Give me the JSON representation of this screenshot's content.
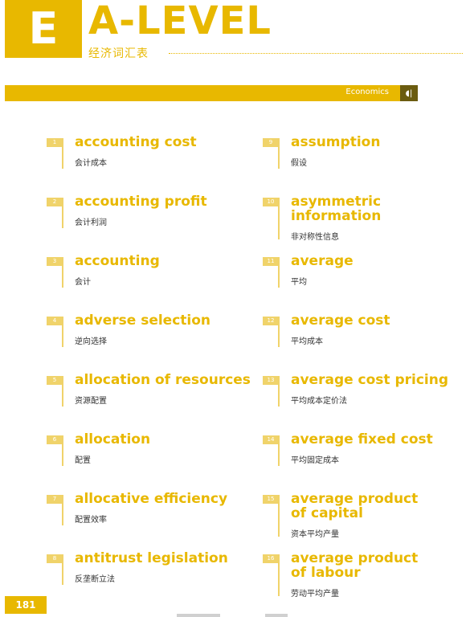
{
  "header": {
    "badge_letter": "E",
    "title": "A-LEVEL",
    "subtitle": "经济词汇表"
  },
  "band": {
    "label": "Economics",
    "icon": "speaker-icon"
  },
  "page_number": "181",
  "colors": {
    "accent": "#e8b800",
    "accent_light": "#f0d36a",
    "band_icon_bg": "#6b5c10"
  },
  "entries_left": [
    {
      "num": "1",
      "term": "accounting cost",
      "zh": "会计成本"
    },
    {
      "num": "2",
      "term": "accounting profit",
      "zh": "会计利润"
    },
    {
      "num": "3",
      "term": "accounting",
      "zh": "会计"
    },
    {
      "num": "4",
      "term": "adverse selection",
      "zh": "逆向选择"
    },
    {
      "num": "5",
      "term": "allocation of resources",
      "zh": "资源配置"
    },
    {
      "num": "6",
      "term": "allocation",
      "zh": "配置"
    },
    {
      "num": "7",
      "term": "allocative efficiency",
      "zh": "配置效率"
    },
    {
      "num": "8",
      "term": "antitrust legislation",
      "zh": "反垄断立法"
    }
  ],
  "entries_right": [
    {
      "num": "9",
      "term": "assumption",
      "zh": "假设"
    },
    {
      "num": "10",
      "term": "asymmetric",
      "term2": "information",
      "zh": "非对称性信息"
    },
    {
      "num": "11",
      "term": "average",
      "zh": "平均"
    },
    {
      "num": "12",
      "term": "average cost",
      "zh": "平均成本"
    },
    {
      "num": "13",
      "term": "average cost pricing",
      "zh": "平均成本定价法"
    },
    {
      "num": "14",
      "term": "average fixed cost",
      "zh": "平均固定成本"
    },
    {
      "num": "15",
      "term": "average product",
      "term2": "of capital",
      "zh": "资本平均产量"
    },
    {
      "num": "16",
      "term": "average product",
      "term2": "of labour",
      "zh": "劳动平均产量"
    }
  ]
}
